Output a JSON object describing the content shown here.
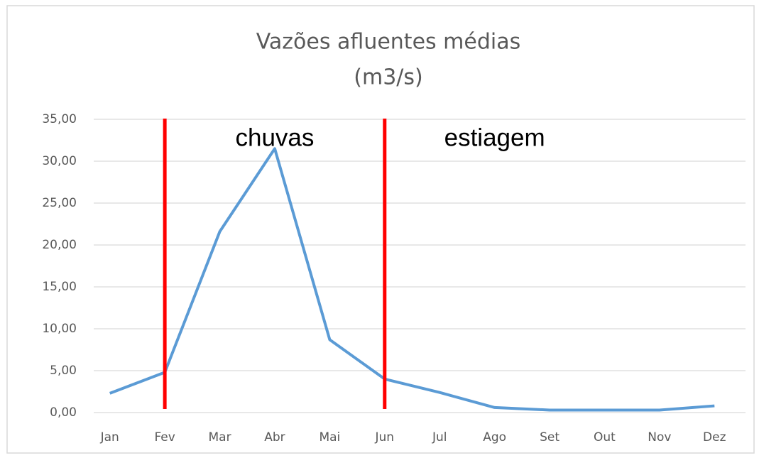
{
  "chart_data": {
    "type": "line",
    "title": [
      "Vazões afluentes médias",
      "(m3/s)"
    ],
    "categories": [
      "Jan",
      "Fev",
      "Mar",
      "Abr",
      "Mai",
      "Jun",
      "Jul",
      "Ago",
      "Set",
      "Out",
      "Nov",
      "Dez"
    ],
    "series": [
      {
        "name": "Vazões",
        "color": "#5b9bd5",
        "values": [
          2.3,
          4.8,
          21.6,
          31.5,
          8.7,
          4.0,
          2.4,
          0.6,
          0.3,
          0.3,
          0.3,
          0.8
        ]
      }
    ],
    "ylim": [
      0,
      35
    ],
    "yticks": [
      {
        "value": 0,
        "label": "0,00"
      },
      {
        "value": 5,
        "label": "5,00"
      },
      {
        "value": 10,
        "label": "10,00"
      },
      {
        "value": 15,
        "label": "15,00"
      },
      {
        "value": 20,
        "label": "20,00"
      },
      {
        "value": 25,
        "label": "25,00"
      },
      {
        "value": 30,
        "label": "30,00"
      },
      {
        "value": 35,
        "label": "35,00"
      }
    ],
    "grid": true,
    "regions": [
      {
        "label": "chuvas",
        "start": "Fev",
        "color": "#ff0000"
      },
      {
        "label": "estiagem",
        "start": "Jun",
        "color": "#ff0000"
      }
    ]
  }
}
